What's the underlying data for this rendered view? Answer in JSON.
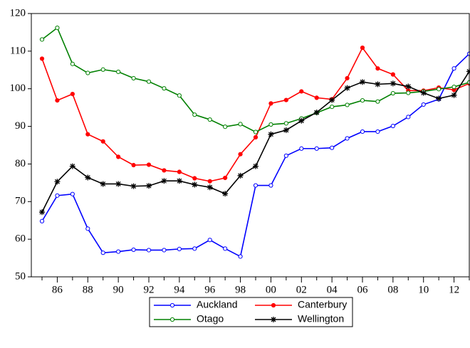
{
  "chart_data": {
    "type": "line",
    "categories": [
      null,
      "86",
      null,
      "88",
      null,
      "90",
      null,
      "92",
      null,
      "94",
      null,
      "96",
      null,
      "98",
      null,
      "00",
      null,
      "02",
      null,
      "04",
      null,
      "06",
      null,
      "08",
      null,
      "10",
      null,
      "12",
      null
    ],
    "series": [
      {
        "name": "Auckland",
        "color": "#0000ff",
        "marker": "open-circle",
        "values": [
          64.8,
          71.6,
          72.0,
          62.8,
          56.4,
          56.7,
          57.2,
          57.1,
          57.1,
          57.4,
          57.5,
          59.8,
          57.5,
          55.4,
          74.3,
          74.3,
          82.2,
          84.1,
          84.1,
          84.3,
          86.8,
          88.6,
          88.6,
          90.1,
          92.5,
          95.8,
          97.2,
          105.4,
          109.3
        ]
      },
      {
        "name": "Canterbury",
        "color": "#ff0000",
        "marker": "filled-circle",
        "values": [
          108.0,
          96.9,
          98.6,
          87.9,
          86.0,
          81.9,
          79.7,
          79.8,
          78.3,
          77.9,
          76.2,
          75.4,
          76.3,
          82.6,
          87.1,
          96.1,
          97.0,
          99.3,
          97.6,
          97.2,
          102.8,
          110.9,
          105.4,
          103.8,
          99.5,
          99.5,
          100.3,
          99.7,
          101.4
        ]
      },
      {
        "name": "Otago",
        "color": "#008000",
        "marker": "open-circle",
        "values": [
          113.1,
          116.2,
          106.6,
          104.2,
          105.1,
          104.5,
          102.8,
          101.9,
          100.1,
          98.2,
          93.1,
          91.8,
          89.9,
          90.6,
          88.5,
          90.5,
          90.8,
          92.1,
          93.6,
          95.2,
          95.7,
          96.9,
          96.6,
          98.8,
          98.9,
          99.3,
          99.9,
          100.5,
          101.7
        ]
      },
      {
        "name": "Wellington",
        "color": "#000000",
        "marker": "asterisk",
        "values": [
          67.2,
          75.3,
          79.4,
          76.4,
          74.7,
          74.7,
          74.1,
          74.2,
          75.5,
          75.5,
          74.5,
          73.8,
          72.1,
          76.9,
          79.4,
          87.9,
          89.0,
          91.5,
          93.7,
          97.0,
          100.2,
          101.8,
          101.2,
          101.4,
          100.6,
          98.9,
          97.4,
          98.3,
          104.6
        ]
      }
    ],
    "ylim": [
      50,
      120
    ],
    "yticks": [
      50,
      60,
      70,
      80,
      90,
      100,
      110,
      120
    ],
    "grid": false,
    "legend": "bottom"
  }
}
